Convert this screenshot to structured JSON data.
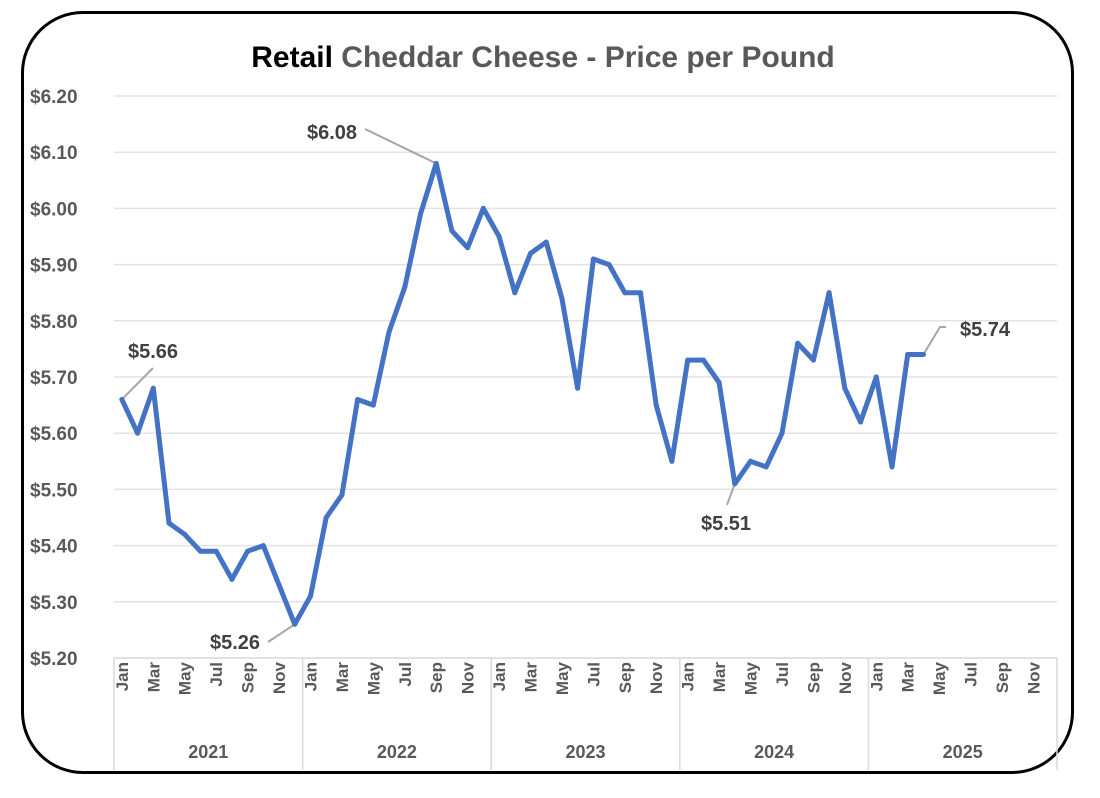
{
  "chart_data": {
    "type": "line",
    "title_strong": "Retail",
    "title_rest": " Cheddar Cheese - Price per Pound",
    "xlabel": "",
    "ylabel": "",
    "ylim": [
      5.2,
      6.2
    ],
    "y_ticks": [
      "$5.20",
      "$5.30",
      "$5.40",
      "$5.50",
      "$5.60",
      "$5.70",
      "$5.80",
      "$5.90",
      "$6.00",
      "$6.10",
      "$6.20"
    ],
    "y_tick_values": [
      5.2,
      5.3,
      5.4,
      5.5,
      5.6,
      5.7,
      5.8,
      5.9,
      6.0,
      6.1,
      6.2
    ],
    "grid": true,
    "legend": "none",
    "years": [
      "2021",
      "2022",
      "2023",
      "2024",
      "2025"
    ],
    "month_tick_labels": [
      "Jan",
      "Mar",
      "May",
      "Jul",
      "Sep",
      "Nov"
    ],
    "months_per_year": 12,
    "series": [
      {
        "name": "Retail Cheddar Cheese Price",
        "color": "#4472C4",
        "values": [
          5.66,
          5.6,
          5.68,
          5.44,
          5.42,
          5.39,
          5.39,
          5.34,
          5.39,
          5.4,
          5.33,
          5.26,
          5.31,
          5.45,
          5.49,
          5.66,
          5.65,
          5.78,
          5.86,
          5.99,
          6.08,
          5.96,
          5.93,
          6.0,
          5.95,
          5.85,
          5.92,
          5.94,
          5.84,
          5.68,
          5.91,
          5.9,
          5.85,
          5.85,
          5.65,
          5.55,
          5.73,
          5.73,
          5.69,
          5.51,
          5.55,
          5.54,
          5.6,
          5.76,
          5.73,
          5.85,
          5.68,
          5.62,
          5.7,
          5.54,
          5.74,
          5.74
        ]
      }
    ],
    "annotations": [
      {
        "index": 0,
        "text": "$5.66"
      },
      {
        "index": 11,
        "text": "$5.26"
      },
      {
        "index": 20,
        "text": "$6.08"
      },
      {
        "index": 39,
        "text": "$5.51"
      },
      {
        "index": 51,
        "text": "$5.74"
      }
    ],
    "colors": {
      "line": "#4472C4",
      "grid": "#e3e3e3",
      "leader": "#a6a6a6",
      "axis_text": "#595959"
    }
  }
}
